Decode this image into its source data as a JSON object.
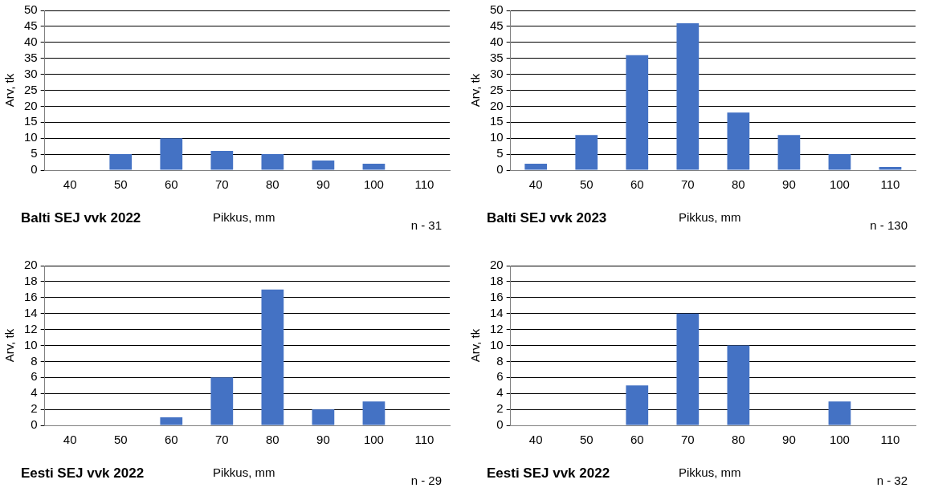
{
  "chart_data": [
    {
      "type": "bar",
      "title": "Balti SEJ vvk 2022",
      "xlabel": "Pikkus, mm",
      "ylabel": "Arv, tk",
      "categories": [
        "40",
        "50",
        "60",
        "70",
        "80",
        "90",
        "100",
        "110"
      ],
      "values": [
        0,
        5,
        10,
        6,
        5,
        3,
        2,
        0
      ],
      "color": "#4472c4",
      "ylim": [
        0,
        50
      ],
      "yticks": [
        0,
        5,
        10,
        15,
        20,
        25,
        30,
        35,
        40,
        45,
        50
      ],
      "grid": "y",
      "annotations": [
        "n - 31"
      ]
    },
    {
      "type": "bar",
      "title": "Balti SEJ vvk 2023",
      "xlabel": "Pikkus, mm",
      "ylabel": "Arv, tk",
      "categories": [
        "40",
        "50",
        "60",
        "70",
        "80",
        "90",
        "100",
        "110"
      ],
      "values": [
        2,
        11,
        36,
        46,
        18,
        11,
        5,
        1
      ],
      "color": "#4472c4",
      "ylim": [
        0,
        50
      ],
      "yticks": [
        0,
        5,
        10,
        15,
        20,
        25,
        30,
        35,
        40,
        45,
        50
      ],
      "grid": "y",
      "annotations": [
        "n - 130"
      ]
    },
    {
      "type": "bar",
      "title": "Eesti SEJ vvk 2022",
      "xlabel": "Pikkus, mm",
      "ylabel": "Arv, tk",
      "categories": [
        "40",
        "50",
        "60",
        "70",
        "80",
        "90",
        "100",
        "110"
      ],
      "values": [
        0,
        0,
        1,
        6,
        17,
        2,
        3,
        0
      ],
      "color": "#4472c4",
      "ylim": [
        0,
        20
      ],
      "yticks": [
        0,
        2,
        4,
        6,
        8,
        10,
        12,
        14,
        16,
        18,
        20
      ],
      "grid": "y",
      "annotations": [
        "n - 29"
      ]
    },
    {
      "type": "bar",
      "title": "Eesti SEJ vvk 2022",
      "xlabel": "Pikkus, mm",
      "ylabel": "Arv, tk",
      "categories": [
        "40",
        "50",
        "60",
        "70",
        "80",
        "90",
        "100",
        "110"
      ],
      "values": [
        0,
        0,
        5,
        14,
        10,
        0,
        3,
        0
      ],
      "color": "#4472c4",
      "ylim": [
        0,
        20
      ],
      "yticks": [
        0,
        2,
        4,
        6,
        8,
        10,
        12,
        14,
        16,
        18,
        20
      ],
      "grid": "y",
      "annotations": [
        "n - 32"
      ]
    }
  ]
}
